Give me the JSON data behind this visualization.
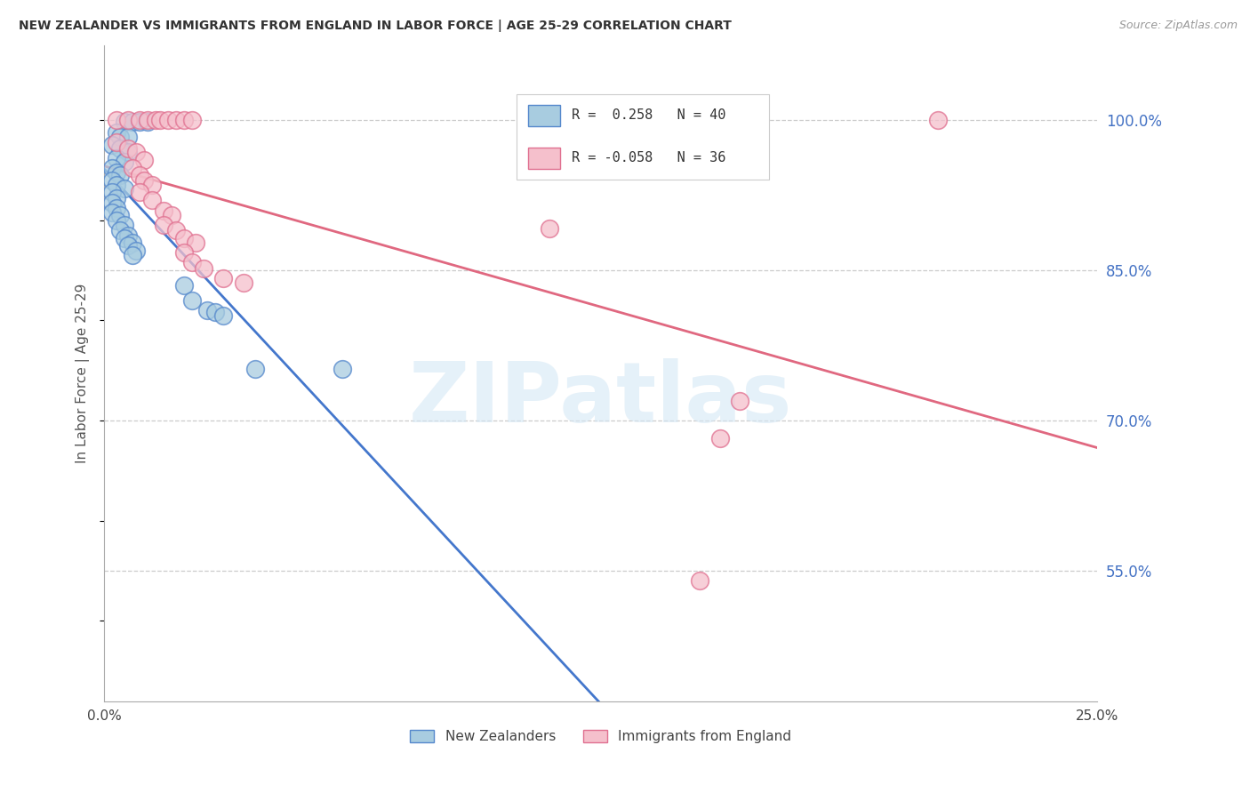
{
  "title": "NEW ZEALANDER VS IMMIGRANTS FROM ENGLAND IN LABOR FORCE | AGE 25-29 CORRELATION CHART",
  "source": "Source: ZipAtlas.com",
  "ylabel": "In Labor Force | Age 25-29",
  "yticks_right": [
    1.0,
    0.85,
    0.7,
    0.55
  ],
  "ytick_labels_right": [
    "100.0%",
    "85.0%",
    "70.0%",
    "55.0%"
  ],
  "legend_blue_label": "New Zealanders",
  "legend_pink_label": "Immigrants from England",
  "R_blue": 0.258,
  "N_blue": 40,
  "R_pink": -0.058,
  "N_pink": 36,
  "blue_fill": "#a8cce0",
  "blue_edge": "#5588cc",
  "pink_fill": "#f5c0cc",
  "pink_edge": "#e07090",
  "blue_line_color": "#4477cc",
  "pink_line_color": "#e06880",
  "watermark_color": "#d5e8f5",
  "xmin": 0.0,
  "xmax": 0.25,
  "ymin": 0.42,
  "ymax": 1.075,
  "blue_dots": [
    [
      0.005,
      0.998
    ],
    [
      0.007,
      0.998
    ],
    [
      0.009,
      0.998
    ],
    [
      0.011,
      0.998
    ],
    [
      0.003,
      0.988
    ],
    [
      0.004,
      0.983
    ],
    [
      0.006,
      0.983
    ],
    [
      0.002,
      0.975
    ],
    [
      0.004,
      0.972
    ],
    [
      0.006,
      0.968
    ],
    [
      0.003,
      0.962
    ],
    [
      0.005,
      0.958
    ],
    [
      0.002,
      0.952
    ],
    [
      0.003,
      0.948
    ],
    [
      0.004,
      0.945
    ],
    [
      0.002,
      0.94
    ],
    [
      0.003,
      0.935
    ],
    [
      0.005,
      0.932
    ],
    [
      0.002,
      0.928
    ],
    [
      0.003,
      0.922
    ],
    [
      0.002,
      0.918
    ],
    [
      0.003,
      0.912
    ],
    [
      0.002,
      0.908
    ],
    [
      0.004,
      0.905
    ],
    [
      0.003,
      0.9
    ],
    [
      0.005,
      0.895
    ],
    [
      0.004,
      0.89
    ],
    [
      0.006,
      0.885
    ],
    [
      0.005,
      0.882
    ],
    [
      0.007,
      0.878
    ],
    [
      0.006,
      0.875
    ],
    [
      0.008,
      0.87
    ],
    [
      0.007,
      0.865
    ],
    [
      0.02,
      0.835
    ],
    [
      0.022,
      0.82
    ],
    [
      0.026,
      0.81
    ],
    [
      0.028,
      0.808
    ],
    [
      0.03,
      0.805
    ],
    [
      0.038,
      0.752
    ],
    [
      0.06,
      0.752
    ]
  ],
  "pink_dots": [
    [
      0.003,
      1.0
    ],
    [
      0.006,
      1.0
    ],
    [
      0.009,
      1.0
    ],
    [
      0.011,
      1.0
    ],
    [
      0.013,
      1.0
    ],
    [
      0.014,
      1.0
    ],
    [
      0.016,
      1.0
    ],
    [
      0.018,
      1.0
    ],
    [
      0.02,
      1.0
    ],
    [
      0.022,
      1.0
    ],
    [
      0.003,
      0.978
    ],
    [
      0.006,
      0.972
    ],
    [
      0.008,
      0.968
    ],
    [
      0.01,
      0.96
    ],
    [
      0.007,
      0.952
    ],
    [
      0.009,
      0.945
    ],
    [
      0.01,
      0.94
    ],
    [
      0.012,
      0.935
    ],
    [
      0.009,
      0.928
    ],
    [
      0.012,
      0.92
    ],
    [
      0.015,
      0.91
    ],
    [
      0.017,
      0.905
    ],
    [
      0.015,
      0.895
    ],
    [
      0.018,
      0.89
    ],
    [
      0.02,
      0.882
    ],
    [
      0.023,
      0.878
    ],
    [
      0.02,
      0.868
    ],
    [
      0.022,
      0.858
    ],
    [
      0.025,
      0.852
    ],
    [
      0.03,
      0.842
    ],
    [
      0.035,
      0.838
    ],
    [
      0.112,
      0.892
    ],
    [
      0.15,
      0.54
    ],
    [
      0.16,
      0.72
    ],
    [
      0.155,
      0.682
    ],
    [
      0.21,
      1.0
    ]
  ]
}
